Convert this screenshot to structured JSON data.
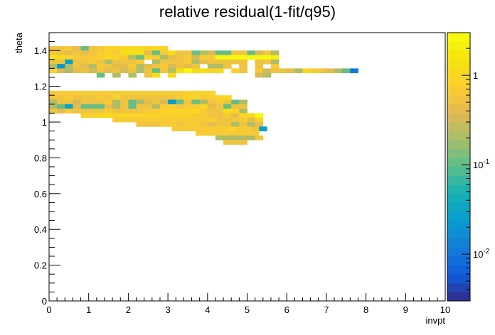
{
  "chart_data": {
    "type": "heatmap",
    "title": "relative residual(1-fit/q95)",
    "xlabel": "invpt",
    "ylabel": "theta",
    "xlim": [
      0,
      10
    ],
    "ylim": [
      0,
      1.5
    ],
    "x_ticks": [
      "0",
      "1",
      "2",
      "3",
      "4",
      "5",
      "6",
      "7",
      "8",
      "9",
      "10"
    ],
    "y_ticks": [
      "0",
      "0.2",
      "0.4",
      "0.6",
      "0.8",
      "1",
      "1.2",
      "1.4"
    ],
    "z_scale": "log",
    "z_range": [
      0.003,
      3
    ],
    "colorbar_ticks": [
      "10",
      "10",
      "1"
    ],
    "colorbar_exponents": [
      "-2",
      "-1",
      ""
    ],
    "colorbar_tick_values": [
      0.01,
      0.1,
      1
    ],
    "bin_width_x": 0.2,
    "bin_height_y": 0.025,
    "rows": [
      {
        "y": 1.4,
        "x0": 0.0,
        "z": [
          0.5,
          0.5,
          0.6,
          0.4,
          0.1,
          0.5,
          0.6,
          0.8,
          0.9,
          1.0,
          1.0,
          1.0,
          0.9,
          1.0,
          0.8
        ]
      },
      {
        "y": 1.375,
        "x0": 0.0,
        "z": [
          0.6,
          0.5,
          0.4,
          0.5,
          0.4,
          0.5,
          0.6,
          0.9,
          0.7,
          1.2,
          1.4,
          1.2,
          0.4,
          0.1,
          0.6,
          1.5,
          0.5,
          0.5,
          0.1,
          0.2,
          0.3,
          0.1,
          0.1,
          0.5,
          0.5,
          0.1,
          0.3,
          0.5,
          0.2
        ]
      },
      {
        "y": 1.35,
        "x0": 0.0,
        "z": [
          1.2,
          1.0,
          0.8,
          0.7,
          0.7,
          0.6,
          0.8,
          1.0,
          0.9,
          0.7,
          0.2,
          0.1,
          0.8,
          0.6,
          0.2,
          0.4,
          0.5,
          0.6,
          0.3,
          0.6,
          0.6,
          2.5,
          2.5,
          2.5,
          2.5,
          2.5,
          2.5,
          2.5,
          2.0
        ]
      },
      {
        "y": 1.325,
        "x0": 0.0,
        "z": [
          0.5,
          0.5,
          0.03,
          0.5,
          0.5,
          0.6,
          0.5,
          0.2,
          0.5,
          0.5,
          0.5,
          0.6,
          null,
          0.2,
          0.5,
          0.5,
          0.5,
          0.6,
          0.2,
          0.4,
          0.5,
          0.5,
          0.5,
          0.5,
          0.5,
          null,
          0.5,
          0.5,
          0.2
        ]
      },
      {
        "y": 1.3,
        "x0": 0.0,
        "z": [
          0.2,
          0.02,
          0.2,
          0.5,
          0.4,
          0.2,
          0.6,
          0.5,
          0.4,
          0.4,
          0.6,
          0.2,
          0.4,
          0.5,
          0.6,
          0.3,
          0.5,
          0.4,
          0.5,
          null,
          0.2,
          0.2,
          0.5,
          null,
          0.5,
          null,
          0.5,
          null,
          0.6
        ]
      },
      {
        "y": 1.275,
        "x0": 0.0,
        "z": [
          0.8,
          0.3,
          0.2,
          0.4,
          0.5,
          0.3,
          0.5,
          0.4,
          0.5,
          0.3,
          0.5,
          0.2,
          0.5,
          0.1,
          0.5,
          0.2,
          1.2,
          3.0,
          1.0,
          1.2,
          0.9,
          1.0,
          null,
          0.9,
          0.5,
          null,
          0.6,
          0.3,
          0.5,
          0.5,
          0.4,
          0.2,
          1.0,
          0.6,
          0.5,
          0.4,
          0.2,
          0.1,
          0.01
        ]
      },
      {
        "y": 1.25,
        "x0": 1.2,
        "z": [
          0.1,
          null,
          0.2,
          null,
          0.2,
          null,
          0.5,
          1.5,
          null,
          1.0,
          null,
          null,
          null,
          null,
          null,
          null,
          null,
          null,
          null,
          null,
          0.3,
          0.2
        ]
      },
      {
        "y": 1.15,
        "x0": 0.0,
        "z": [
          0.6,
          0.6,
          0.6,
          0.6,
          0.7,
          0.6,
          0.6,
          0.6,
          0.6,
          0.6,
          0.6,
          0.6,
          0.6,
          0.6,
          0.6,
          0.6,
          0.6,
          0.8,
          0.8,
          0.9,
          0.9
        ]
      },
      {
        "y": 1.125,
        "x0": 0.0,
        "z": [
          0.5,
          0.5,
          0.6,
          0.5,
          0.5,
          0.5,
          0.6,
          0.5,
          0.8,
          0.5,
          0.5,
          0.5,
          0.5,
          0.5,
          0.5,
          0.5,
          0.7,
          0.9,
          0.9,
          0.6,
          0.6,
          0.8,
          1.0
        ]
      },
      {
        "y": 1.1,
        "x0": 0.0,
        "z": [
          0.2,
          0.5,
          0.5,
          0.3,
          0.5,
          0.5,
          0.5,
          0.6,
          0.2,
          0.5,
          0.1,
          0.2,
          0.4,
          0.5,
          0.3,
          0.02,
          0.1,
          0.5,
          0.1,
          0.2,
          0.5,
          0.6,
          0.5,
          0.1,
          0.2
        ]
      },
      {
        "y": 1.075,
        "x0": 0.0,
        "z": [
          0.2,
          0.1,
          0.03,
          0.4,
          0.1,
          0.1,
          0.1,
          0.4,
          0.2,
          0.5,
          0.1,
          0.5,
          0.5,
          0.2,
          0.6,
          0.8,
          0.5,
          0.6,
          0.6,
          1.0,
          0.4,
          0.5,
          0.1,
          0.5,
          0.5
        ]
      },
      {
        "y": 1.05,
        "x0": 0.0,
        "z": [
          0.5,
          0.4,
          0.6,
          0.5,
          0.5,
          0.5,
          0.5,
          0.6,
          0.5,
          0.5,
          0.5,
          0.5,
          0.6,
          0.6,
          0.8,
          0.9,
          0.8,
          0.8,
          1.0,
          0.6,
          0.5,
          0.5,
          1.3,
          0.8,
          0.2
        ]
      },
      {
        "y": 1.025,
        "x0": 0.8,
        "z": [
          0.9,
          0.9,
          1.0,
          1.0,
          0.9,
          1.0,
          0.8,
          0.9,
          0.8,
          0.8,
          0.8,
          0.8,
          0.8,
          0.8,
          0.6,
          0.6,
          0.5,
          0.5,
          0.6,
          0.4,
          1.0,
          1.0,
          2.5
        ]
      },
      {
        "y": 1.0,
        "x0": 1.6,
        "z": [
          0.6,
          0.7,
          0.7,
          0.7,
          0.6,
          0.6,
          0.6,
          0.6,
          0.6,
          0.7,
          0.7,
          0.7,
          0.6,
          0.5,
          0.5,
          0.5,
          0.6,
          0.4,
          0.9
        ]
      },
      {
        "y": 0.975,
        "x0": 2.2,
        "z": [
          0.5,
          0.5,
          0.5,
          0.6,
          0.6,
          0.5,
          0.6,
          0.6,
          0.5,
          0.4,
          0.5,
          0.5,
          0.2,
          0.5,
          0.2,
          0.4
        ]
      },
      {
        "y": 0.95,
        "x0": 3.1,
        "z": [
          0.6,
          0.6,
          0.6,
          0.6,
          0.6,
          0.6,
          0.6,
          0.8,
          0.6,
          0.6,
          0.5,
          0.03
        ]
      },
      {
        "y": 0.925,
        "x0": 3.7,
        "z": [
          0.6,
          0.6,
          0.6,
          0.6,
          0.6,
          0.6,
          0.6,
          0.6
        ]
      },
      {
        "y": 0.9,
        "x0": 4.2,
        "z": [
          0.2,
          0.2,
          0.2,
          0.2,
          0.2,
          0.5
        ]
      },
      {
        "y": 0.875,
        "x0": 4.4,
        "z": [
          0.5,
          0.5,
          0.5
        ]
      }
    ]
  }
}
